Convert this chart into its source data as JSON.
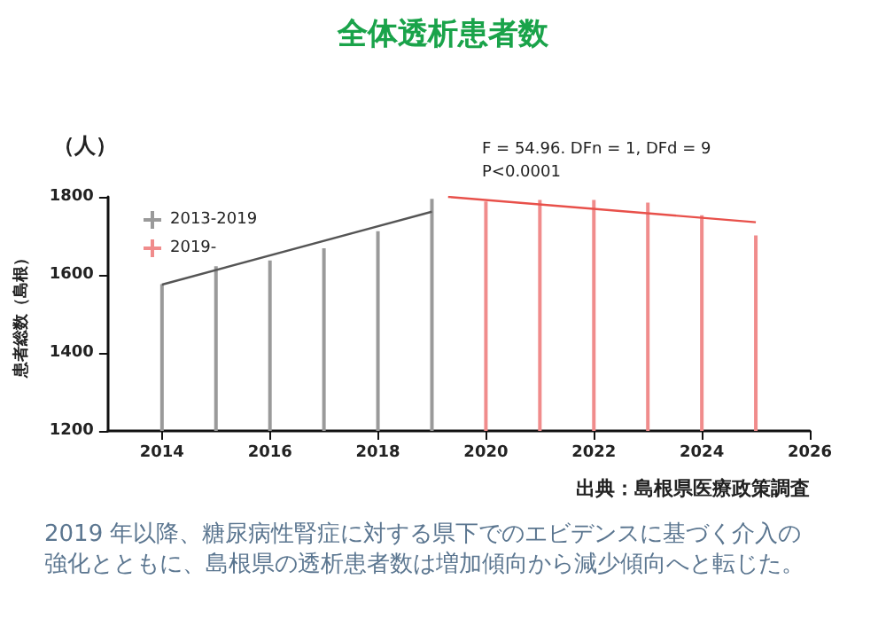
{
  "chart_data": {
    "type": "bar",
    "title": "全体透析患者数",
    "ylabel": "患者総数（島根）",
    "annotations": [
      "（人）",
      "F = 54.96. DFn = 1, DFd = 9",
      "P<0.0001",
      "出典：島根県医療政策調査",
      "2019 年以降、糖尿病性腎症に対する県下でのエビデンスに基づく介入の強化とともに、島根県の透析患者数は増加傾向から減少傾向へと転じた。"
    ],
    "series": [
      {
        "name": "2013-2019",
        "color": "#9a9a9a",
        "x": [
          2014,
          2015,
          2016,
          2017,
          2018,
          2019
        ],
        "values": [
          1576,
          1622,
          1637,
          1668,
          1712,
          1795
        ]
      },
      {
        "name": "2019-",
        "color": "#f08c8c",
        "x": [
          2020,
          2021,
          2022,
          2023,
          2024,
          2025
        ],
        "values": [
          1788,
          1792,
          1792,
          1785,
          1753,
          1701
        ]
      },
      {
        "type": "line",
        "color": "#555555",
        "x": [
          2014,
          2019
        ],
        "values": [
          1575,
          1762
        ]
      },
      {
        "type": "line",
        "color": "#e8504a",
        "x": [
          2019.3,
          2025
        ],
        "values": [
          1800,
          1735
        ]
      }
    ],
    "xlim": [
      2013,
      2026
    ],
    "xticks": [
      2014,
      2016,
      2018,
      2020,
      2022,
      2024,
      2026
    ],
    "ylim": [
      1200,
      1800
    ],
    "yticks": [
      1200,
      1400,
      1600,
      1800
    ],
    "grid": false,
    "legend": "top left"
  }
}
